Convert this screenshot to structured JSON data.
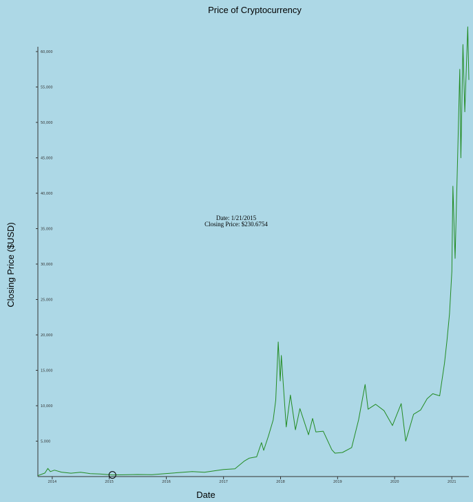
{
  "chart_data": {
    "type": "line",
    "title": "Price of Cryptocurrency",
    "xlabel": "Date",
    "ylabel": "Closing Price ($USD)",
    "x_ticks": [
      "2014",
      "2015",
      "2016",
      "2017",
      "2018",
      "2019",
      "2020",
      "2021"
    ],
    "y_ticks": [
      "5,000",
      "10,000",
      "15,000",
      "20,000",
      "25,000",
      "30,000",
      "35,000",
      "40,000",
      "45,000",
      "50,000",
      "55,000",
      "60,000"
    ],
    "xlim": [
      "2013-10-01",
      "2021-04-20"
    ],
    "ylim": [
      0,
      60000
    ],
    "series": [
      {
        "color": "#228b22",
        "x": [
          "2013-10-01",
          "2013-11-15",
          "2013-12-04",
          "2013-12-20",
          "2014-01-15",
          "2014-03-01",
          "2014-05-01",
          "2014-07-01",
          "2014-09-01",
          "2014-11-01",
          "2015-01-21",
          "2015-04-01",
          "2015-07-01",
          "2015-10-01",
          "2016-01-01",
          "2016-06-15",
          "2016-09-01",
          "2017-01-01",
          "2017-03-15",
          "2017-05-15",
          "2017-06-15",
          "2017-08-01",
          "2017-09-01",
          "2017-09-15",
          "2017-10-15",
          "2017-11-15",
          "2017-12-01",
          "2017-12-17",
          "2017-12-30",
          "2018-01-06",
          "2018-02-06",
          "2018-03-05",
          "2018-04-06",
          "2018-05-05",
          "2018-06-29",
          "2018-07-25",
          "2018-08-15",
          "2018-10-01",
          "2018-11-25",
          "2018-12-15",
          "2019-02-01",
          "2019-04-01",
          "2019-05-15",
          "2019-06-26",
          "2019-07-15",
          "2019-09-01",
          "2019-10-25",
          "2019-12-18",
          "2020-02-12",
          "2020-03-12",
          "2020-05-01",
          "2020-06-15",
          "2020-07-27",
          "2020-09-01",
          "2020-10-15",
          "2020-11-15",
          "2020-12-01",
          "2020-12-17",
          "2021-01-01",
          "2021-01-08",
          "2021-01-22",
          "2021-02-08",
          "2021-02-21",
          "2021-02-28",
          "2021-03-13",
          "2021-03-25",
          "2021-04-13",
          "2021-04-20"
        ],
        "y": [
          130,
          500,
          1150,
          700,
          900,
          620,
          480,
          600,
          420,
          370,
          230,
          250,
          290,
          260,
          430,
          700,
          600,
          1000,
          1100,
          2200,
          2600,
          2800,
          4800,
          3700,
          5700,
          8000,
          10800,
          19000,
          13500,
          17100,
          7000,
          11500,
          6600,
          9600,
          5900,
          8200,
          6300,
          6400,
          3800,
          3300,
          3400,
          4100,
          8000,
          13000,
          9500,
          10200,
          9300,
          7200,
          10300,
          5000,
          8800,
          9400,
          11000,
          11700,
          11400,
          16000,
          19200,
          23000,
          29000,
          41000,
          30800,
          46000,
          57500,
          45000,
          61000,
          51500,
          63500,
          56000
        ]
      }
    ],
    "tooltip": {
      "date_text": "Date: 1/21/2015",
      "price_text": "Closing Price: $230.6754",
      "x": "2015-01-21",
      "y": 230.6754
    }
  }
}
